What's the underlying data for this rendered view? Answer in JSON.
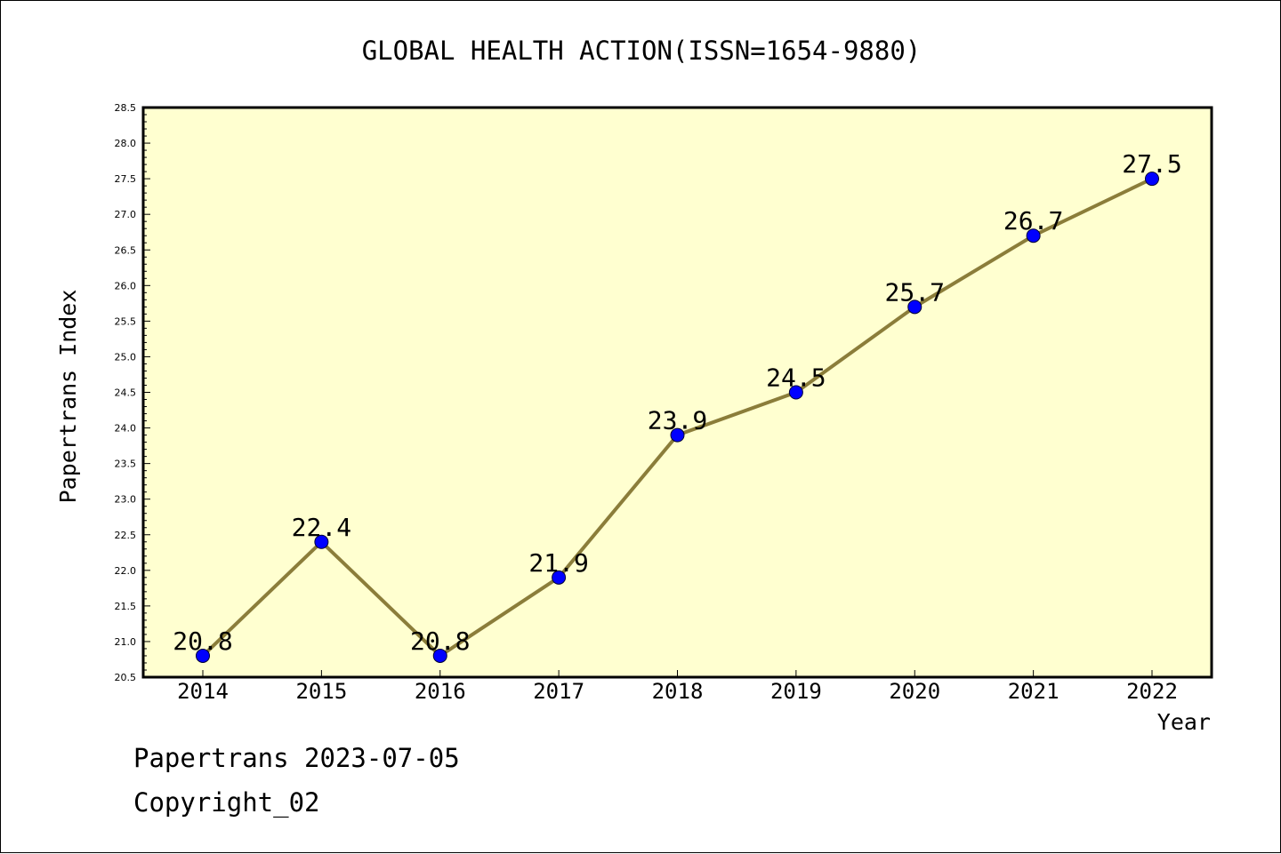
{
  "chart_data": {
    "type": "line",
    "title": "GLOBAL HEALTH ACTION(ISSN=1654-9880)",
    "xlabel": "Year",
    "ylabel": "Papertrans Index",
    "categories": [
      "2014",
      "2015",
      "2016",
      "2017",
      "2018",
      "2019",
      "2020",
      "2021",
      "2022"
    ],
    "values": [
      20.8,
      22.4,
      20.8,
      21.9,
      23.9,
      24.5,
      25.7,
      26.7,
      27.5
    ],
    "data_labels": [
      "20.8",
      "22.4",
      "20.8",
      "21.9",
      "23.9",
      "24.5",
      "25.7",
      "26.7",
      "27.5"
    ],
    "ylim": [
      20.5,
      28.5
    ],
    "yticks": [
      "20.5",
      "21.0",
      "21.5",
      "22.0",
      "22.5",
      "23.0",
      "23.5",
      "24.0",
      "24.5",
      "25.0",
      "25.5",
      "26.0",
      "26.5",
      "27.0",
      "27.5",
      "28.0",
      "28.5"
    ],
    "grid": false,
    "colors": {
      "plot_background": "#ffffd0",
      "line": "#8b7d3a",
      "marker": "#0000ff"
    }
  },
  "footer": {
    "line1": "Papertrans 2023-07-05",
    "line2": "Copyright_02"
  }
}
